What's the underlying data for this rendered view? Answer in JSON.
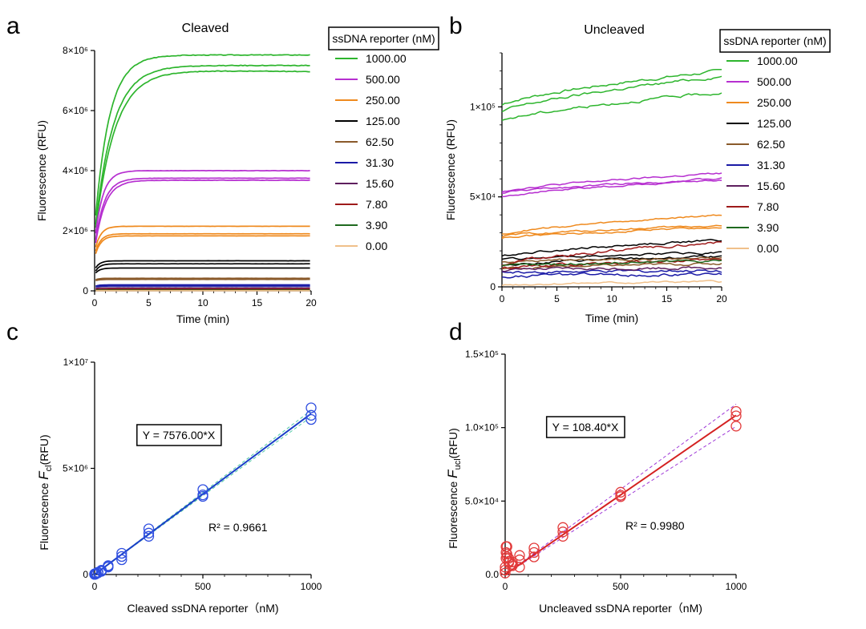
{
  "chart_data": [
    {
      "panel": "a",
      "type": "line",
      "title": "Cleaved",
      "xlabel": "Time (min)",
      "ylabel": "Fluorescence (RFU)",
      "xlim": [
        0,
        20
      ],
      "ylim": [
        0,
        8000000
      ],
      "xticks": [
        "0",
        "5",
        "10",
        "15",
        "20"
      ],
      "yticks": [
        "0",
        "2×10⁶",
        "4×10⁶",
        "6×10⁶",
        "8×10⁶"
      ],
      "legend": {
        "title": "ssDNA reporter (nM)",
        "placement": "right",
        "entries": [
          {
            "label": "1000.00",
            "color": "#2db52d"
          },
          {
            "label": "500.00",
            "color": "#b62fd0"
          },
          {
            "label": "250.00",
            "color": "#ef8a1e"
          },
          {
            "label": "125.00",
            "color": "#000000"
          },
          {
            "label": "62.50",
            "color": "#8a5a2b"
          },
          {
            "label": "31.30",
            "color": "#1a1aa6"
          },
          {
            "label": "15.60",
            "color": "#5e1f5e"
          },
          {
            "label": "7.80",
            "color": "#9e1a1a"
          },
          {
            "label": "3.90",
            "color": "#1f6a1f"
          },
          {
            "label": "0.00",
            "color": "#f0c08a"
          }
        ]
      },
      "series": [
        {
          "color": "#2db52d",
          "start": 2100000,
          "plateau": 7850000,
          "k": 0.75
        },
        {
          "color": "#2db52d",
          "start": 1900000,
          "plateau": 7500000,
          "k": 0.6
        },
        {
          "color": "#2db52d",
          "start": 1800000,
          "plateau": 7350000,
          "end": 7300000,
          "k": 0.55
        },
        {
          "color": "#b62fd0",
          "start": 1600000,
          "plateau": 4000000,
          "k": 1.4
        },
        {
          "color": "#b62fd0",
          "start": 1450000,
          "plateau": 3750000,
          "k": 1.2
        },
        {
          "color": "#b62fd0",
          "start": 1350000,
          "plateau": 3680000,
          "k": 1.1
        },
        {
          "color": "#ef8a1e",
          "start": 1300000,
          "plateau": 2150000,
          "k": 2.0
        },
        {
          "color": "#ef8a1e",
          "start": 1200000,
          "plateau": 1900000,
          "k": 2.0
        },
        {
          "color": "#ef8a1e",
          "start": 1100000,
          "plateau": 1830000,
          "k": 2.0
        },
        {
          "color": "#000000",
          "start": 700000,
          "plateau": 1000000,
          "k": 2.5
        },
        {
          "color": "#000000",
          "start": 600000,
          "plateau": 900000,
          "k": 2.5
        },
        {
          "color": "#000000",
          "start": 550000,
          "plateau": 760000,
          "k": 2.5
        },
        {
          "color": "#8a5a2b",
          "start": 360000,
          "plateau": 420000,
          "k": 3.0
        },
        {
          "color": "#8a5a2b",
          "start": 330000,
          "plateau": 380000,
          "k": 3.0
        },
        {
          "color": "#1a1aa6",
          "start": 150000,
          "plateau": 200000,
          "k": 3.0
        },
        {
          "color": "#1a1aa6",
          "start": 120000,
          "plateau": 160000,
          "k": 3.0
        },
        {
          "color": "#5e1f5e",
          "start": 80000,
          "plateau": 100000,
          "k": 3.0
        },
        {
          "color": "#9e1a1a",
          "start": 40000,
          "plateau": 55000,
          "k": 3.0
        },
        {
          "color": "#1f6a1f",
          "start": 20000,
          "plateau": 25000,
          "k": 3.0
        },
        {
          "color": "#f0c08a",
          "start": 5000,
          "plateau": 5000,
          "k": 3.0
        }
      ]
    },
    {
      "panel": "b",
      "type": "line",
      "title": "Uncleaved",
      "xlabel": "Time (min)",
      "ylabel": "Fluorescence (RFU)",
      "xlim": [
        0,
        20
      ],
      "ylim": [
        0,
        130000
      ],
      "xticks": [
        "0",
        "5",
        "10",
        "15",
        "20"
      ],
      "yticks": [
        "0",
        "5×10⁴",
        "1×10⁵"
      ],
      "legend": {
        "title": "ssDNA reporter (nM)",
        "placement": "right",
        "entries": [
          {
            "label": "1000.00",
            "color": "#2db52d"
          },
          {
            "label": "500.00",
            "color": "#b62fd0"
          },
          {
            "label": "250.00",
            "color": "#ef8a1e"
          },
          {
            "label": "125.00",
            "color": "#000000"
          },
          {
            "label": "62.50",
            "color": "#8a5a2b"
          },
          {
            "label": "31.30",
            "color": "#1a1aa6"
          },
          {
            "label": "15.60",
            "color": "#5e1f5e"
          },
          {
            "label": "7.80",
            "color": "#9e1a1a"
          },
          {
            "label": "3.90",
            "color": "#1f6a1f"
          },
          {
            "label": "0.00",
            "color": "#f0c08a"
          }
        ]
      },
      "series": [
        {
          "color": "#2db52d",
          "start": 101000,
          "end": 120000,
          "noise": 1200
        },
        {
          "color": "#2db52d",
          "start": 97000,
          "end": 117000,
          "noise": 1200
        },
        {
          "color": "#2db52d",
          "start": 92000,
          "end": 108000,
          "noise": 1200
        },
        {
          "color": "#b62fd0",
          "start": 53000,
          "end": 63000,
          "noise": 800
        },
        {
          "color": "#b62fd0",
          "start": 52000,
          "end": 60000,
          "noise": 800
        },
        {
          "color": "#b62fd0",
          "start": 50000,
          "end": 59500,
          "noise": 800
        },
        {
          "color": "#ef8a1e",
          "start": 29000,
          "end": 40000,
          "noise": 800
        },
        {
          "color": "#ef8a1e",
          "start": 28000,
          "end": 34000,
          "noise": 800
        },
        {
          "color": "#ef8a1e",
          "start": 27000,
          "end": 33000,
          "noise": 800
        },
        {
          "color": "#000000",
          "start": 17000,
          "end": 26000,
          "noise": 1000
        },
        {
          "color": "#000000",
          "start": 15000,
          "end": 19000,
          "noise": 1000
        },
        {
          "color": "#000000",
          "start": 12000,
          "end": 17000,
          "noise": 1000
        },
        {
          "color": "#8a5a2b",
          "start": 14000,
          "end": 16000,
          "noise": 1000
        },
        {
          "color": "#8a5a2b",
          "start": 10000,
          "end": 13000,
          "noise": 1000
        },
        {
          "color": "#1a1aa6",
          "start": 8000,
          "end": 9000,
          "noise": 1200
        },
        {
          "color": "#1a1aa6",
          "start": 6000,
          "end": 7000,
          "noise": 1200
        },
        {
          "color": "#5e1f5e",
          "start": 9000,
          "end": 11000,
          "noise": 1200
        },
        {
          "color": "#9e1a1a",
          "start": 12000,
          "end": 25000,
          "noise": 1200
        },
        {
          "color": "#9e1a1a",
          "start": 10000,
          "end": 15000,
          "noise": 1200
        },
        {
          "color": "#1f6a1f",
          "start": 11000,
          "end": 15000,
          "noise": 1200
        },
        {
          "color": "#f0c08a",
          "start": 1000,
          "end": 3000,
          "noise": 800
        }
      ]
    },
    {
      "panel": "c",
      "type": "scatter",
      "xlabel": "Cleaved ssDNA reporter（nM)",
      "ylabel_main": "Fluorescence",
      "ylabel_var": "F",
      "ylabel_sub": "cl",
      "ylabel_unit": "(RFU)",
      "xlim": [
        0,
        1000
      ],
      "ylim": [
        0,
        10000000
      ],
      "xticks": [
        "0",
        "500",
        "1000"
      ],
      "yticks": [
        "0",
        "5×10⁶",
        "1×10⁷"
      ],
      "equation": "Y = 7576.00*X",
      "r2_label": "R² = 0.9661",
      "slope": 7576,
      "marker_color": "#2f4ee0",
      "line_color": "#1a3fc8",
      "band_color": "#4fc7a4",
      "points": [
        [
          0,
          5000
        ],
        [
          0,
          15000
        ],
        [
          0,
          30000
        ],
        [
          3.9,
          20000
        ],
        [
          3.9,
          25000
        ],
        [
          3.9,
          30000
        ],
        [
          7.8,
          40000
        ],
        [
          7.8,
          55000
        ],
        [
          7.8,
          60000
        ],
        [
          15.6,
          80000
        ],
        [
          15.6,
          100000
        ],
        [
          15.6,
          110000
        ],
        [
          31.3,
          150000
        ],
        [
          31.3,
          180000
        ],
        [
          31.3,
          200000
        ],
        [
          62.5,
          350000
        ],
        [
          62.5,
          400000
        ],
        [
          62.5,
          420000
        ],
        [
          125,
          700000
        ],
        [
          125,
          850000
        ],
        [
          125,
          1000000
        ],
        [
          250,
          1800000
        ],
        [
          250,
          1950000
        ],
        [
          250,
          2150000
        ],
        [
          500,
          3680000
        ],
        [
          500,
          3750000
        ],
        [
          500,
          4000000
        ],
        [
          1000,
          7300000
        ],
        [
          1000,
          7500000
        ],
        [
          1000,
          7850000
        ]
      ]
    },
    {
      "panel": "d",
      "type": "scatter",
      "xlabel": "Uncleaved ssDNA reporter（nM)",
      "ylabel_main": "Fluorescence",
      "ylabel_var": "F",
      "ylabel_sub": "ucl",
      "ylabel_unit": "(RFU)",
      "xlim": [
        0,
        1000
      ],
      "ylim": [
        0,
        150000
      ],
      "xticks": [
        "0",
        "500",
        "1000"
      ],
      "yticks": [
        "0.0",
        "5.0×10⁴",
        "1.0×10⁵",
        "1.5×10⁵"
      ],
      "equation": "Y = 108.40*X",
      "r2_label": "R² = 0.9980",
      "slope": 108.4,
      "marker_color": "#e23a3a",
      "line_color": "#d42020",
      "band_color": "#a03ad8",
      "points": [
        [
          0,
          1000
        ],
        [
          0,
          3000
        ],
        [
          0,
          5000
        ],
        [
          3.9,
          11000
        ],
        [
          3.9,
          15000
        ],
        [
          3.9,
          19000
        ],
        [
          7.8,
          12000
        ],
        [
          7.8,
          19000
        ],
        [
          7.8,
          14000
        ],
        [
          15.6,
          9000
        ],
        [
          15.6,
          11000
        ],
        [
          15.6,
          8000
        ],
        [
          31.3,
          6000
        ],
        [
          31.3,
          7000
        ],
        [
          31.3,
          8500
        ],
        [
          62.5,
          10000
        ],
        [
          62.5,
          13000
        ],
        [
          62.5,
          5000
        ],
        [
          125,
          12000
        ],
        [
          125,
          15000
        ],
        [
          125,
          18000
        ],
        [
          250,
          26000
        ],
        [
          250,
          29000
        ],
        [
          250,
          32000
        ],
        [
          500,
          53000
        ],
        [
          500,
          54000
        ],
        [
          500,
          56000
        ],
        [
          1000,
          101000
        ],
        [
          1000,
          108000
        ],
        [
          1000,
          111000
        ]
      ]
    }
  ]
}
